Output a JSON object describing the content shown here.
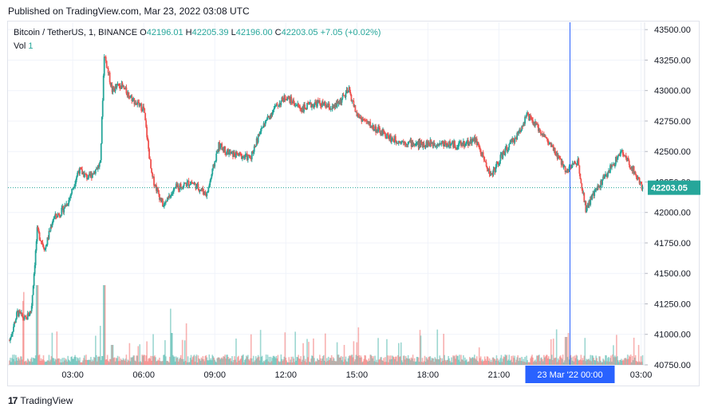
{
  "published": "Published on TradingView.com, Mar 23, 2022 03:08 UTC",
  "legend": {
    "symbol": "Bitcoin / TetherUS, 1, BINANCE",
    "o_label": "O",
    "o_value": "42196.01",
    "h_label": "H",
    "h_value": "42205.39",
    "l_label": "L",
    "l_value": "42196.00",
    "c_label": "C",
    "c_value": "42203.05",
    "change": "+7.05 (+0.02%)",
    "vol_label": "Vol",
    "vol_value": "1"
  },
  "colors": {
    "up": "#26a69a",
    "down": "#ef5350",
    "crosshair": "#2962ff",
    "grid": "#f0f3fa"
  },
  "footer": {
    "brand": "TradingView",
    "logo_glyph": "17"
  },
  "crosshair_label": "23 Mar '22   00:00",
  "price_tag": "42203.05",
  "chart_data": {
    "type": "candlestick",
    "title": "Bitcoin / TetherUS, 1, BINANCE",
    "x_ticks": [
      "03:00",
      "06:00",
      "09:00",
      "12:00",
      "15:00",
      "18:00",
      "21:00",
      "00:00",
      "03:00"
    ],
    "y_ticks": [
      "43500.00",
      "43250.00",
      "43000.00",
      "42750.00",
      "42500.00",
      "42250.00",
      "42000.00",
      "41750.00",
      "41500.00",
      "41250.00",
      "41000.00",
      "40750.00"
    ],
    "ylim": [
      40750,
      43560
    ],
    "last_price": 42203.05,
    "crosshair_time": "23 Mar '22 00:00",
    "price_path": [
      [
        "00:20",
        40950
      ],
      [
        "00:40",
        41180
      ],
      [
        "01:00",
        41120
      ],
      [
        "01:15",
        41200
      ],
      [
        "01:30",
        41850
      ],
      [
        "01:50",
        41700
      ],
      [
        "02:10",
        41950
      ],
      [
        "02:30",
        42000
      ],
      [
        "02:50",
        42100
      ],
      [
        "03:15",
        42350
      ],
      [
        "03:40",
        42280
      ],
      [
        "04:10",
        42400
      ],
      [
        "04:20",
        43300
      ],
      [
        "04:40",
        43000
      ],
      [
        "05:00",
        43050
      ],
      [
        "05:40",
        42900
      ],
      [
        "06:00",
        42850
      ],
      [
        "06:20",
        42300
      ],
      [
        "06:50",
        42050
      ],
      [
        "07:20",
        42200
      ],
      [
        "08:00",
        42250
      ],
      [
        "08:40",
        42150
      ],
      [
        "09:10",
        42550
      ],
      [
        "09:40",
        42480
      ],
      [
        "10:30",
        42450
      ],
      [
        "11:00",
        42700
      ],
      [
        "11:30",
        42850
      ],
      [
        "12:00",
        42950
      ],
      [
        "12:40",
        42850
      ],
      [
        "13:20",
        42900
      ],
      [
        "14:00",
        42850
      ],
      [
        "14:40",
        43000
      ],
      [
        "15:00",
        42800
      ],
      [
        "15:40",
        42700
      ],
      [
        "16:30",
        42600
      ],
      [
        "17:30",
        42560
      ],
      [
        "18:30",
        42570
      ],
      [
        "19:20",
        42550
      ],
      [
        "20:00",
        42600
      ],
      [
        "20:40",
        42300
      ],
      [
        "21:10",
        42480
      ],
      [
        "21:50",
        42650
      ],
      [
        "22:10",
        42800
      ],
      [
        "22:50",
        42650
      ],
      [
        "23:20",
        42500
      ],
      [
        "23:50",
        42350
      ],
      [
        "00:20",
        42420
      ],
      [
        "00:40",
        42030
      ],
      [
        "01:00",
        42150
      ],
      [
        "01:40",
        42350
      ],
      [
        "02:10",
        42500
      ],
      [
        "02:40",
        42350
      ],
      [
        "03:05",
        42203
      ]
    ],
    "volume_spikes": [
      [
        "01:30",
        1
      ],
      [
        "04:20",
        1
      ],
      [
        "04:40",
        0.25
      ],
      [
        "07:10",
        0.4
      ],
      [
        "23:50",
        0.35
      ],
      [
        "00:55",
        0.65
      ]
    ]
  }
}
